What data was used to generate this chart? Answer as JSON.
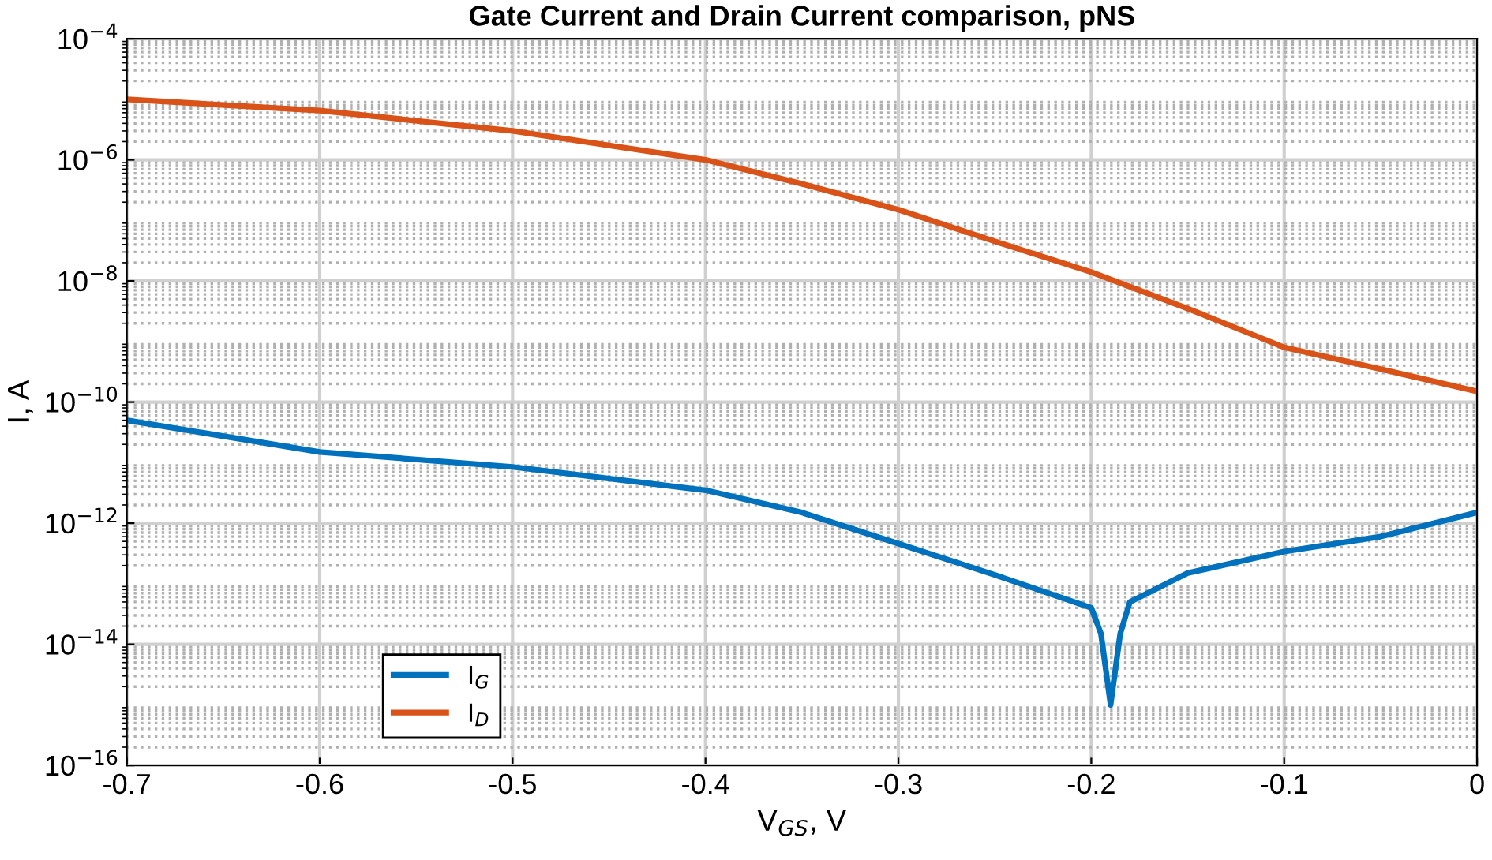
{
  "chart_data": {
    "type": "line",
    "title": "Gate Current and Drain Current comparison, pNS",
    "xlabel": "V$_{GS}$, V",
    "ylabel": "I, A",
    "log": "y",
    "grid": true,
    "legend": "bottom left",
    "line_style": "solid",
    "marker": "none",
    "xlim": [
      -0.7,
      0
    ],
    "xticks": [
      -0.7,
      -0.6,
      -0.5,
      -0.4,
      -0.3,
      -0.2,
      -0.1,
      0
    ],
    "ylim": [
      1e-16,
      0.0001
    ],
    "yticks": [
      {
        "value": 1e-16,
        "label": "10$^{−16}$"
      },
      {
        "value": 1e-14,
        "label": "10$^{−14}$"
      },
      {
        "value": 1e-12,
        "label": "10$^{−12}$"
      },
      {
        "value": 1e-10,
        "label": "10$^{−10}$"
      },
      {
        "value": 1e-08,
        "label": "10$^{−8}$"
      },
      {
        "value": 1e-06,
        "label": "10$^{−6}$"
      },
      {
        "value": 0.0001,
        "label": "10$^{−4}$"
      }
    ],
    "series": [
      {
        "name": "I$_{G}$",
        "color": "#0072bd",
        "x": [
          -0.7,
          -0.6,
          -0.5,
          -0.4,
          -0.35,
          -0.3,
          -0.25,
          -0.2,
          -0.195,
          -0.19,
          -0.185,
          -0.18,
          -0.15,
          -0.1,
          -0.05,
          0
        ],
        "values": [
          5e-11,
          1.5e-11,
          8.5e-12,
          3.5e-12,
          1.5e-12,
          4.6e-13,
          1.4e-13,
          4e-14,
          1.5e-14,
          1e-15,
          1.5e-14,
          5e-14,
          1.5e-13,
          3.4e-13,
          6e-13,
          1.5e-12
        ]
      },
      {
        "name": "I$_{D}$",
        "color": "#d95319",
        "x": [
          -0.7,
          -0.6,
          -0.5,
          -0.4,
          -0.35,
          -0.3,
          -0.25,
          -0.2,
          -0.15,
          -0.1,
          -0.05,
          0
        ],
        "values": [
          1e-05,
          6.5e-06,
          3e-06,
          1e-06,
          4e-07,
          1.5e-07,
          4.5e-08,
          1.4e-08,
          3.5e-09,
          8e-10,
          3.5e-10,
          1.5e-10
        ]
      }
    ]
  }
}
